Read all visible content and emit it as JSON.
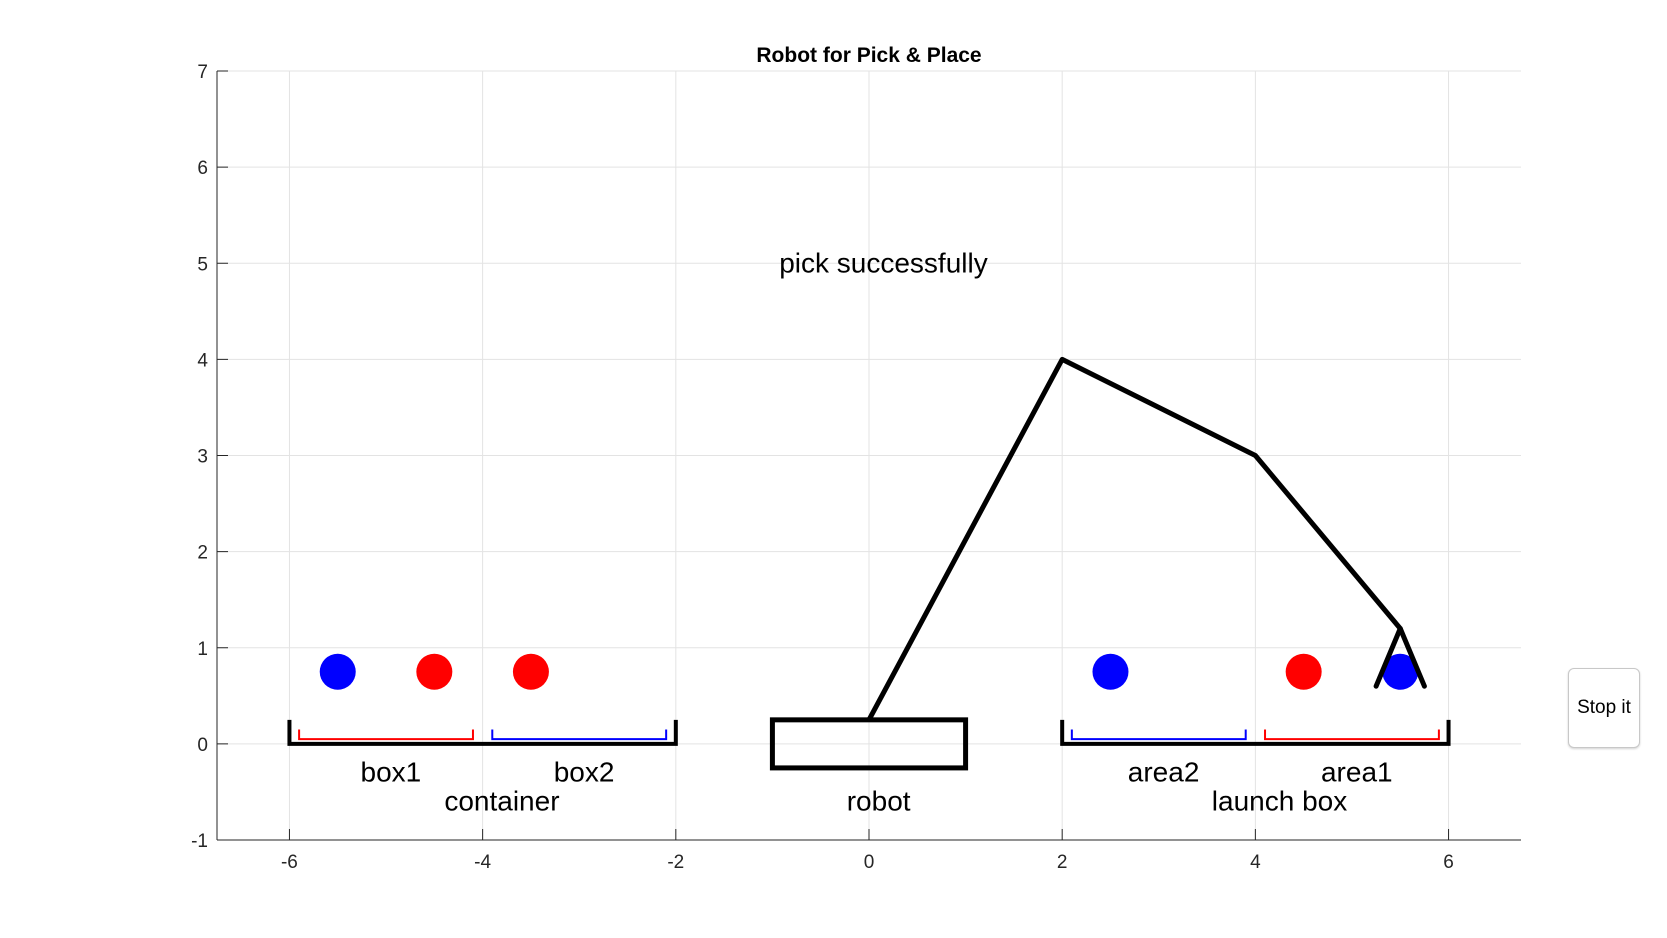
{
  "chart_data": {
    "type": "line",
    "title": "Robot for Pick & Place",
    "xlabel": "",
    "ylabel": "",
    "xlim": [
      -6.75,
      6.75
    ],
    "ylim": [
      -1,
      7
    ],
    "x_ticks": [
      -6,
      -4,
      -2,
      0,
      2,
      4,
      6
    ],
    "y_ticks": [
      -1,
      0,
      1,
      2,
      3,
      4,
      5,
      6,
      7
    ],
    "grid": true,
    "legend": "none",
    "status_text": {
      "text": "pick successfully",
      "x": 0.15,
      "y": 5
    },
    "robot_base": {
      "x": [
        -1,
        1
      ],
      "y": [
        -0.25,
        0.25
      ]
    },
    "robot_arm": {
      "x": [
        0,
        2,
        4,
        5.5
      ],
      "y": [
        0.25,
        4,
        3,
        1.2
      ]
    },
    "gripper": {
      "apex": [
        5.5,
        1.2
      ],
      "left_tip": [
        5.25,
        0.6
      ],
      "right_tip": [
        5.75,
        0.6
      ]
    },
    "trays": [
      {
        "x": [
          -6,
          -2
        ],
        "y_top": 0.25,
        "color": "#000000"
      },
      {
        "x": [
          2,
          6
        ],
        "y_top": 0.25,
        "color": "#000000"
      }
    ],
    "sub_trays": [
      {
        "x": [
          -5.9,
          -4.1
        ],
        "y_top": 0.15,
        "y_bottom": 0.05,
        "color": "#ff0000"
      },
      {
        "x": [
          -3.9,
          -2.1
        ],
        "y_top": 0.15,
        "y_bottom": 0.05,
        "color": "#0000ff"
      },
      {
        "x": [
          2.1,
          3.9
        ],
        "y_top": 0.15,
        "y_bottom": 0.05,
        "color": "#0000ff"
      },
      {
        "x": [
          4.1,
          5.9
        ],
        "y_top": 0.15,
        "y_bottom": 0.05,
        "color": "#ff0000"
      }
    ],
    "balls": [
      {
        "x": -5.5,
        "y": 0.75,
        "color": "#0000ff"
      },
      {
        "x": -4.5,
        "y": 0.75,
        "color": "#ff0000"
      },
      {
        "x": -3.5,
        "y": 0.75,
        "color": "#ff0000"
      },
      {
        "x": 2.5,
        "y": 0.75,
        "color": "#0000ff"
      },
      {
        "x": 4.5,
        "y": 0.75,
        "color": "#ff0000"
      },
      {
        "x": 5.5,
        "y": 0.75,
        "color": "#0000ff"
      }
    ],
    "labels": [
      {
        "name": "label-box1",
        "text": "box1",
        "x": -4.95,
        "y": -0.3
      },
      {
        "name": "label-box2",
        "text": "box2",
        "x": -2.95,
        "y": -0.3
      },
      {
        "name": "label-container",
        "text": "container",
        "x": -3.8,
        "y": -0.6
      },
      {
        "name": "label-robot",
        "text": "robot",
        "x": 0.1,
        "y": -0.6
      },
      {
        "name": "label-area2",
        "text": "area2",
        "x": 3.05,
        "y": -0.3
      },
      {
        "name": "label-area1",
        "text": "area1",
        "x": 5.05,
        "y": -0.3
      },
      {
        "name": "label-launch-box",
        "text": "launch box",
        "x": 4.25,
        "y": -0.6
      }
    ]
  },
  "controls": {
    "stop_label": "Stop it"
  }
}
